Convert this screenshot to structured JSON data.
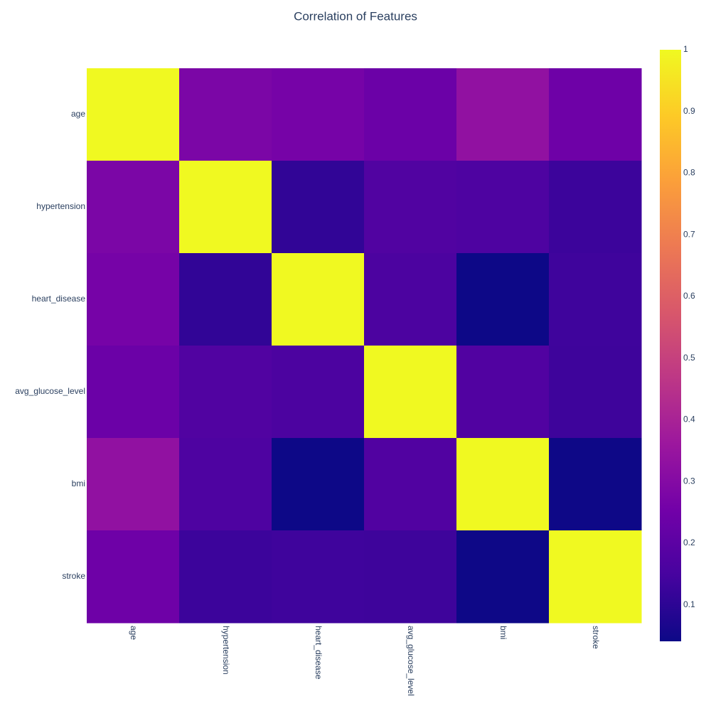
{
  "chart_data": {
    "type": "heatmap",
    "title": "Correlation of Features",
    "x": [
      "age",
      "hypertension",
      "heart_disease",
      "avg_glucose_level",
      "bmi",
      "stroke"
    ],
    "y": [
      "age",
      "hypertension",
      "heart_disease",
      "avg_glucose_level",
      "bmi",
      "stroke"
    ],
    "z": [
      [
        1,
        0.276,
        0.264,
        0.238,
        0.333,
        0.245
      ],
      [
        0.276,
        1,
        0.108,
        0.174,
        0.168,
        0.128
      ],
      [
        0.264,
        0.108,
        1,
        0.162,
        0.041,
        0.135
      ],
      [
        0.238,
        0.174,
        0.162,
        1,
        0.175,
        0.132
      ],
      [
        0.333,
        0.168,
        0.041,
        0.175,
        1,
        0.042
      ],
      [
        0.245,
        0.128,
        0.135,
        0.132,
        0.042,
        1
      ]
    ],
    "zlim": [
      0.041,
      1
    ],
    "zticks": [
      0.1,
      0.2,
      0.3,
      0.4,
      0.5,
      0.6,
      0.7,
      0.8,
      0.9,
      1
    ],
    "colorscale": [
      "#0d0887",
      "#46039f",
      "#7201a8",
      "#9c179e",
      "#bd3786",
      "#d8576b",
      "#ed7953",
      "#fb9f3a",
      "#fdca26",
      "#f0f921"
    ]
  }
}
